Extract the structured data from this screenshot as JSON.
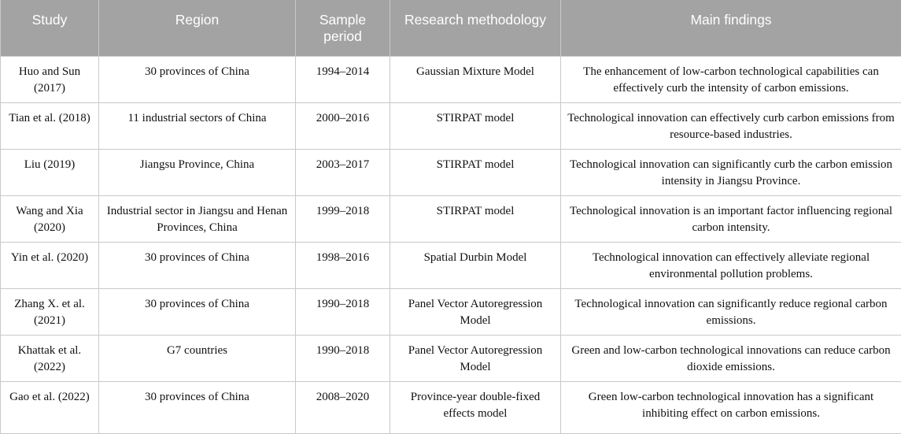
{
  "table": {
    "headers": [
      "Study",
      "Region",
      "Sample period",
      "Research methodology",
      "Main findings"
    ],
    "rows": [
      {
        "study": "Huo and Sun (2017)",
        "region": "30 provinces of China",
        "period": "1994–2014",
        "method": "Gaussian Mixture Model",
        "findings": "The enhancement of low-carbon technological capabilities can effectively curb the intensity of carbon emissions."
      },
      {
        "study": "Tian et al. (2018)",
        "region": "11 industrial sectors of China",
        "period": "2000–2016",
        "method": "STIRPAT model",
        "findings": "Technological innovation can effectively curb carbon emissions from resource-based industries."
      },
      {
        "study": "Liu (2019)",
        "region": "Jiangsu Province, China",
        "period": "2003–2017",
        "method": "STIRPAT model",
        "findings": "Technological innovation can significantly curb the carbon emission intensity in Jiangsu Province."
      },
      {
        "study": "Wang and Xia (2020)",
        "region": "Industrial sector in Jiangsu and Henan Provinces, China",
        "period": "1999–2018",
        "method": "STIRPAT model",
        "findings": "Technological innovation is an important factor influencing regional carbon intensity."
      },
      {
        "study": "Yin et al. (2020)",
        "region": "30 provinces of China",
        "period": "1998–2016",
        "method": "Spatial Durbin Model",
        "findings": "Technological innovation can effectively alleviate regional environmental pollution problems."
      },
      {
        "study": "Zhang X. et al. (2021)",
        "region": "30 provinces of China",
        "period": "1990–2018",
        "method": "Panel Vector Autoregression Model",
        "findings": "Technological innovation can significantly reduce regional carbon emissions."
      },
      {
        "study": "Khattak et al. (2022)",
        "region": "G7 countries",
        "period": "1990–2018",
        "method": "Panel Vector Autoregression Model",
        "findings": "Green and low-carbon technological innovations can reduce carbon dioxide emissions."
      },
      {
        "study": "Gao et al. (2022)",
        "region": "30 provinces of China",
        "period": "2008–2020",
        "method": "Province-year double-fixed effects model",
        "findings": "Green low-carbon technological innovation has a significant inhibiting effect on carbon emissions."
      }
    ]
  }
}
